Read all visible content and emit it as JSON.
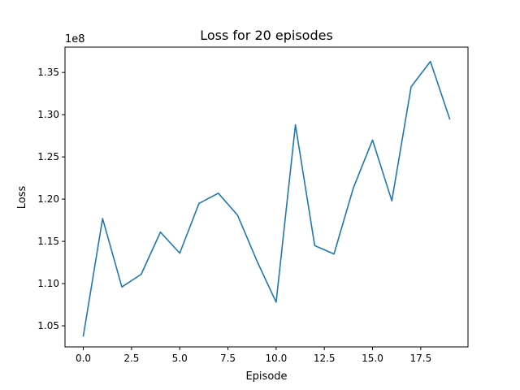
{
  "chart_data": {
    "type": "line",
    "title": "Loss for 20 episodes",
    "xlabel": "Episode",
    "ylabel": "Loss",
    "y_offset_label": "1e8",
    "grid": false,
    "legend": "none",
    "xlim": [
      -0.95,
      19.95
    ],
    "ylim": [
      102.5,
      138.0
    ],
    "y_units_note": "×1e6 (values shown on axis with 1e8 offset)",
    "x_ticks": [
      0.0,
      2.5,
      5.0,
      7.5,
      10.0,
      12.5,
      15.0,
      17.5
    ],
    "x_tick_labels": [
      "0.0",
      "2.5",
      "5.0",
      "7.5",
      "10.0",
      "12.5",
      "15.0",
      "17.5"
    ],
    "y_ticks": [
      105,
      110,
      115,
      120,
      125,
      130,
      135
    ],
    "y_tick_labels": [
      "1.05",
      "1.10",
      "1.15",
      "1.20",
      "1.25",
      "1.30",
      "1.35"
    ],
    "series": [
      {
        "color": "#1f77b4",
        "x": [
          0,
          1,
          2,
          3,
          4,
          5,
          6,
          7,
          8,
          9,
          10,
          11,
          12,
          13,
          14,
          15,
          16,
          17,
          18,
          19
        ],
        "values": [
          103.8,
          117.7,
          109.6,
          111.1,
          116.1,
          113.6,
          119.5,
          120.7,
          118.1,
          112.7,
          107.8,
          128.8,
          114.5,
          113.5,
          121.3,
          127.0,
          119.8,
          133.3,
          136.3,
          129.5
        ]
      }
    ]
  }
}
